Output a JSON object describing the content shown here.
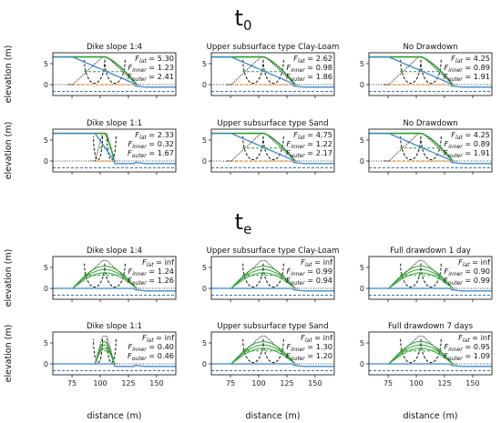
{
  "figure": {
    "sections": [
      {
        "label": "t",
        "subscript": "0"
      },
      {
        "label": "t",
        "subscript": "e"
      }
    ],
    "ylabel": "elevation (m)",
    "xlabel": "distance (m)",
    "colors": {
      "ground": "#3b8bd1",
      "phreatic": "#2ca02c",
      "inner_slip": "#111111",
      "outer_slip": "#111111",
      "dike_outline": "#111111",
      "orange_level": "#ff7f0e",
      "blue_level": "#1f5aa6",
      "green_level": "#2ca02c",
      "center_line": "#000000"
    }
  },
  "chart_data": [
    {
      "section": "t0",
      "type": "line",
      "title": "Dike slope 1:4",
      "slope": 4,
      "phreatic_shape": "high",
      "F": {
        "lat": "5.30",
        "inner": "1.23",
        "outer": "2.41"
      },
      "x": {
        "ticks": [
          75,
          100,
          125,
          150
        ],
        "lim": [
          58,
          167
        ]
      },
      "y": {
        "ticks": [
          0,
          5
        ],
        "lim": [
          -2.6,
          7.6
        ]
      },
      "levels": {
        "orange": 0,
        "blue_dashed": -1.6,
        "green_dashed": 3.1
      }
    },
    {
      "section": "t0",
      "type": "line",
      "title": "Upper subsurface type Clay-Loam",
      "slope": 4,
      "phreatic_shape": "high",
      "F": {
        "lat": "2.62",
        "inner": "0.98",
        "outer": "1.86"
      },
      "x": {
        "ticks": [
          75,
          100,
          125,
          150
        ],
        "lim": [
          58,
          167
        ]
      },
      "y": {
        "ticks": [
          0,
          5
        ],
        "lim": [
          -2.6,
          7.6
        ]
      },
      "levels": {
        "orange": 0,
        "blue_dashed": -1.6,
        "green_dashed": 3.1
      }
    },
    {
      "section": "t0",
      "type": "line",
      "title": "No Drawdown",
      "slope": 4,
      "phreatic_shape": "high",
      "F": {
        "lat": "4.25",
        "inner": "0.89",
        "outer": "1.91"
      },
      "x": {
        "ticks": [
          75,
          100,
          125,
          150
        ],
        "lim": [
          58,
          167
        ]
      },
      "y": {
        "ticks": [
          0,
          5
        ],
        "lim": [
          -2.6,
          7.6
        ]
      },
      "levels": {
        "orange": 0,
        "blue_dashed": -1.6,
        "green_dashed": 3.1
      }
    },
    {
      "section": "t0",
      "type": "line",
      "title": "Dike slope 1:1",
      "slope": 1,
      "phreatic_shape": "high",
      "F": {
        "lat": "2.33",
        "inner": "0.32",
        "outer": "1.67"
      },
      "x": {
        "ticks": [
          75,
          100,
          125,
          150
        ],
        "lim": [
          58,
          167
        ]
      },
      "y": {
        "ticks": [
          0,
          5
        ],
        "lim": [
          -2.6,
          7.6
        ]
      },
      "levels": {
        "orange": 0,
        "blue_dashed": -1.6,
        "green_dashed": 3.1
      }
    },
    {
      "section": "t0",
      "type": "line",
      "title": "Upper subsurface type Sand",
      "slope": 4,
      "phreatic_shape": "high",
      "F": {
        "lat": "4.75",
        "inner": "1.22",
        "outer": "2.17"
      },
      "x": {
        "ticks": [
          75,
          100,
          125,
          150
        ],
        "lim": [
          58,
          167
        ]
      },
      "y": {
        "ticks": [
          0,
          5
        ],
        "lim": [
          -2.6,
          7.6
        ]
      },
      "levels": {
        "orange": 0,
        "blue_dashed": -1.6,
        "green_dashed": 3.1
      }
    },
    {
      "section": "t0",
      "type": "line",
      "title": "No Drawdown",
      "slope": 4,
      "phreatic_shape": "high",
      "F": {
        "lat": "4.25",
        "inner": "0.89",
        "outer": "1.91"
      },
      "x": {
        "ticks": [
          75,
          100,
          125,
          150
        ],
        "lim": [
          58,
          167
        ]
      },
      "y": {
        "ticks": [
          0,
          5
        ],
        "lim": [
          -2.6,
          7.6
        ]
      },
      "levels": {
        "orange": 0,
        "blue_dashed": -1.6,
        "green_dashed": 3.1
      }
    },
    {
      "section": "te",
      "type": "line",
      "title": "Dike slope 1:4",
      "slope": 4,
      "phreatic_shape": "dome",
      "F": {
        "lat": "inf",
        "inner": "1.24",
        "outer": "1.26"
      },
      "x": {
        "ticks": [
          75,
          100,
          125,
          150
        ],
        "lim": [
          58,
          167
        ]
      },
      "y": {
        "ticks": [
          0,
          5
        ],
        "lim": [
          -2.6,
          7.6
        ]
      },
      "levels": {
        "orange": 0,
        "blue_dashed": -1.6,
        "green_dashed": 3.1
      }
    },
    {
      "section": "te",
      "type": "line",
      "title": "Upper subsurface type Clay-Loam",
      "slope": 4,
      "phreatic_shape": "dome",
      "F": {
        "lat": "inf",
        "inner": "0.99",
        "outer": "0.94"
      },
      "x": {
        "ticks": [
          75,
          100,
          125,
          150
        ],
        "lim": [
          58,
          167
        ]
      },
      "y": {
        "ticks": [
          0,
          5
        ],
        "lim": [
          -2.6,
          7.6
        ]
      },
      "levels": {
        "orange": 0,
        "blue_dashed": -1.6,
        "green_dashed": 3.1
      }
    },
    {
      "section": "te",
      "type": "line",
      "title": "Full drawdown 1 day",
      "slope": 4,
      "phreatic_shape": "dome",
      "F": {
        "lat": "inf",
        "inner": "0.90",
        "outer": "0.99"
      },
      "x": {
        "ticks": [
          75,
          100,
          125,
          150
        ],
        "lim": [
          58,
          167
        ]
      },
      "y": {
        "ticks": [
          0,
          5
        ],
        "lim": [
          -2.6,
          7.6
        ]
      },
      "levels": {
        "orange": 0,
        "blue_dashed": -1.6,
        "green_dashed": 3.1
      }
    },
    {
      "section": "te",
      "type": "line",
      "title": "Dike slope 1:1",
      "slope": 1,
      "phreatic_shape": "dome",
      "F": {
        "lat": "inf",
        "inner": "0.40",
        "outer": "0.46"
      },
      "x": {
        "ticks": [
          75,
          100,
          125,
          150
        ],
        "lim": [
          58,
          167
        ]
      },
      "y": {
        "ticks": [
          0,
          5
        ],
        "lim": [
          -2.6,
          7.6
        ]
      },
      "levels": {
        "orange": 0,
        "blue_dashed": -1.6,
        "green_dashed": 3.1
      }
    },
    {
      "section": "te",
      "type": "line",
      "title": "Upper subsurface type Sand",
      "slope": 4,
      "phreatic_shape": "dome",
      "F": {
        "lat": "inf",
        "inner": "1.30",
        "outer": "1.20"
      },
      "x": {
        "ticks": [
          75,
          100,
          125,
          150
        ],
        "lim": [
          58,
          167
        ]
      },
      "y": {
        "ticks": [
          0,
          5
        ],
        "lim": [
          -2.6,
          7.6
        ]
      },
      "levels": {
        "orange": 0,
        "blue_dashed": -1.6,
        "green_dashed": 3.1
      }
    },
    {
      "section": "te",
      "type": "line",
      "title": "Full drawdown 7 days",
      "slope": 4,
      "phreatic_shape": "dome",
      "F": {
        "lat": "inf",
        "inner": "0.95",
        "outer": "1.09"
      },
      "x": {
        "ticks": [
          75,
          100,
          125,
          150
        ],
        "lim": [
          58,
          167
        ]
      },
      "y": {
        "ticks": [
          0,
          5
        ],
        "lim": [
          -2.6,
          7.6
        ]
      },
      "levels": {
        "orange": 0,
        "blue_dashed": -1.6,
        "green_dashed": 3.1
      }
    }
  ]
}
